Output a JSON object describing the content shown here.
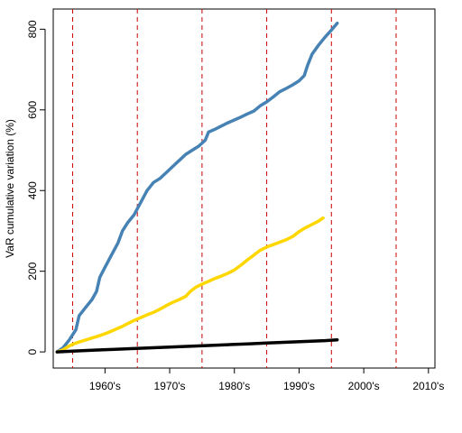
{
  "chart_data": {
    "type": "line",
    "title": "",
    "xlabel": "",
    "ylabel": "VaR cumulative variation (%)",
    "x_domain": [
      1952,
      2011
    ],
    "ylim": [
      -40,
      850
    ],
    "y_ticks": [
      0,
      200,
      400,
      600,
      800
    ],
    "x_tick_labels": [
      {
        "x": 1960,
        "label": "1960's"
      },
      {
        "x": 1970,
        "label": "1970's"
      },
      {
        "x": 1980,
        "label": "1980's"
      },
      {
        "x": 1990,
        "label": "1990's"
      },
      {
        "x": 2000,
        "label": "2000's"
      },
      {
        "x": 2010,
        "label": "2010's"
      }
    ],
    "decade_lines": [
      1955,
      1965,
      1975,
      1985,
      1995,
      2005
    ],
    "decade_line_color": "#cc0000",
    "series": [
      {
        "color": "#4682b4",
        "points": [
          [
            1952.6,
            0
          ],
          [
            1953.5,
            10
          ],
          [
            1954.5,
            30
          ],
          [
            1955.5,
            55
          ],
          [
            1956.0,
            90
          ],
          [
            1957.0,
            110
          ],
          [
            1958.0,
            130
          ],
          [
            1958.7,
            150
          ],
          [
            1959.2,
            185
          ],
          [
            1960.0,
            210
          ],
          [
            1961.0,
            240
          ],
          [
            1962.0,
            270
          ],
          [
            1962.7,
            300
          ],
          [
            1963.5,
            320
          ],
          [
            1964.5,
            340
          ],
          [
            1965.5,
            370
          ],
          [
            1966.5,
            400
          ],
          [
            1967.5,
            420
          ],
          [
            1968.5,
            430
          ],
          [
            1969.5,
            445
          ],
          [
            1970.5,
            460
          ],
          [
            1971.5,
            475
          ],
          [
            1972.5,
            490
          ],
          [
            1973.5,
            500
          ],
          [
            1974.5,
            510
          ],
          [
            1975.5,
            525
          ],
          [
            1976.0,
            545
          ],
          [
            1977.0,
            552
          ],
          [
            1978.0,
            560
          ],
          [
            1979.0,
            568
          ],
          [
            1980.0,
            575
          ],
          [
            1981.0,
            582
          ],
          [
            1982.0,
            590
          ],
          [
            1983.0,
            597
          ],
          [
            1984.0,
            610
          ],
          [
            1985.0,
            620
          ],
          [
            1986.0,
            632
          ],
          [
            1987.0,
            645
          ],
          [
            1988.0,
            653
          ],
          [
            1989.0,
            662
          ],
          [
            1990.0,
            672
          ],
          [
            1990.8,
            685
          ],
          [
            1991.3,
            710
          ],
          [
            1992.0,
            738
          ],
          [
            1993.0,
            760
          ],
          [
            1994.0,
            780
          ],
          [
            1995.0,
            798
          ],
          [
            1995.9,
            815
          ]
        ]
      },
      {
        "color": "#ffd700",
        "points": [
          [
            1952.6,
            0
          ],
          [
            1953.5,
            5
          ],
          [
            1954.5,
            15
          ],
          [
            1955.5,
            22
          ],
          [
            1956.5,
            27
          ],
          [
            1957.5,
            32
          ],
          [
            1958.5,
            37
          ],
          [
            1959.5,
            42
          ],
          [
            1960.5,
            48
          ],
          [
            1961.5,
            55
          ],
          [
            1962.5,
            62
          ],
          [
            1963.5,
            70
          ],
          [
            1964.5,
            78
          ],
          [
            1965.5,
            85
          ],
          [
            1966.5,
            92
          ],
          [
            1967.5,
            98
          ],
          [
            1968.5,
            106
          ],
          [
            1969.5,
            115
          ],
          [
            1970.5,
            123
          ],
          [
            1971.5,
            130
          ],
          [
            1972.5,
            138
          ],
          [
            1973.2,
            150
          ],
          [
            1974.0,
            160
          ],
          [
            1975.0,
            168
          ],
          [
            1976.0,
            175
          ],
          [
            1977.0,
            182
          ],
          [
            1978.0,
            188
          ],
          [
            1979.0,
            195
          ],
          [
            1980.0,
            203
          ],
          [
            1981.0,
            215
          ],
          [
            1982.0,
            228
          ],
          [
            1983.0,
            240
          ],
          [
            1984.0,
            252
          ],
          [
            1985.0,
            260
          ],
          [
            1986.0,
            266
          ],
          [
            1987.0,
            272
          ],
          [
            1988.0,
            278
          ],
          [
            1989.0,
            286
          ],
          [
            1990.0,
            298
          ],
          [
            1991.0,
            308
          ],
          [
            1992.0,
            316
          ],
          [
            1993.0,
            324
          ],
          [
            1993.7,
            332
          ]
        ]
      },
      {
        "color": "#000000",
        "points": [
          [
            1952.6,
            0
          ],
          [
            1955.0,
            2
          ],
          [
            1958.0,
            4
          ],
          [
            1961.0,
            6
          ],
          [
            1964.0,
            8
          ],
          [
            1967.0,
            10
          ],
          [
            1970.0,
            12
          ],
          [
            1973.0,
            14
          ],
          [
            1976.0,
            16
          ],
          [
            1979.0,
            18
          ],
          [
            1982.0,
            20
          ],
          [
            1985.0,
            22
          ],
          [
            1988.0,
            24
          ],
          [
            1991.0,
            26
          ],
          [
            1994.0,
            28
          ],
          [
            1995.9,
            30
          ]
        ]
      }
    ]
  }
}
